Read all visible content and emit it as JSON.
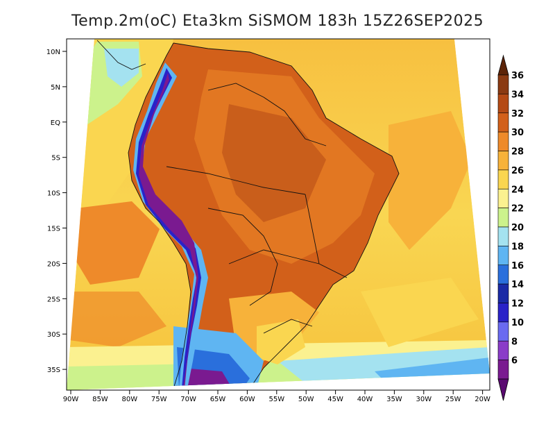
{
  "title": "Temp.2m(oC) Eta3km SiSMOM 183h 15Z26SEP2025",
  "lat_ticks": [
    "10N",
    "5N",
    "EQ",
    "5S",
    "10S",
    "15S",
    "20S",
    "25S",
    "30S",
    "35S"
  ],
  "lon_ticks": [
    "90W",
    "85W",
    "80W",
    "75W",
    "70W",
    "65W",
    "60W",
    "55W",
    "50W",
    "45W",
    "40W",
    "35W",
    "30W",
    "25W",
    "20W"
  ],
  "colorbar": {
    "labels": [
      "36",
      "34",
      "32",
      "30",
      "28",
      "26",
      "24",
      "22",
      "20",
      "18",
      "16",
      "14",
      "12",
      "10",
      "8",
      "6"
    ],
    "colors": [
      "#5c2408",
      "#8a3a12",
      "#b44a15",
      "#d2601a",
      "#ee8a2a",
      "#f7b23a",
      "#fad650",
      "#fbf190",
      "#ccf28c",
      "#a4e2f0",
      "#5fb5f2",
      "#2a6fdc",
      "#1a2aa6",
      "#2a22c8",
      "#6a6af0",
      "#8a3cc8",
      "#7a1a90",
      "#5a0a70"
    ]
  }
}
